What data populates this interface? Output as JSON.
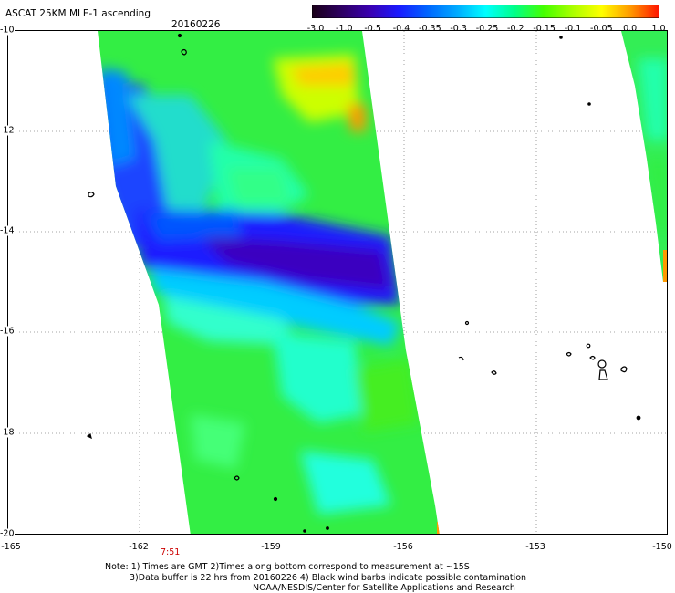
{
  "title": "ASCAT 25KM MLE-1 ascending",
  "date": "20160226",
  "colorbar": {
    "labels": [
      "-3.0",
      "-1.0",
      "-0.5",
      "-0.4",
      "-0.35",
      "-0.3",
      "-0.25",
      "-0.2",
      "-0.15",
      "-0.1",
      "-0.05",
      "0.0",
      "1.0"
    ],
    "colors": [
      "#1a0018",
      "#2d0060",
      "#3a00b0",
      "#1a1aff",
      "#0066ff",
      "#00aaff",
      "#00ffff",
      "#00ff88",
      "#44ff00",
      "#aaff00",
      "#ffff00",
      "#ff9900",
      "#ff1100"
    ]
  },
  "lat_labels": [
    "-10",
    "-12",
    "-14",
    "-16",
    "-18",
    "-20"
  ],
  "lon_labels": [
    "-165",
    "-162",
    "-159",
    "-156",
    "-153",
    "-150"
  ],
  "time_label": "7:51",
  "notes": {
    "line1": "Note: 1) Times are GMT 2)Times along bottom correspond to measurement at ~15S",
    "line2": "3)Data buffer is 22 hrs from 20160226 4) Black wind barbs indicate possible contamination",
    "line3": "NOAA/NESDIS/Center for Satellite Applications and Research"
  }
}
